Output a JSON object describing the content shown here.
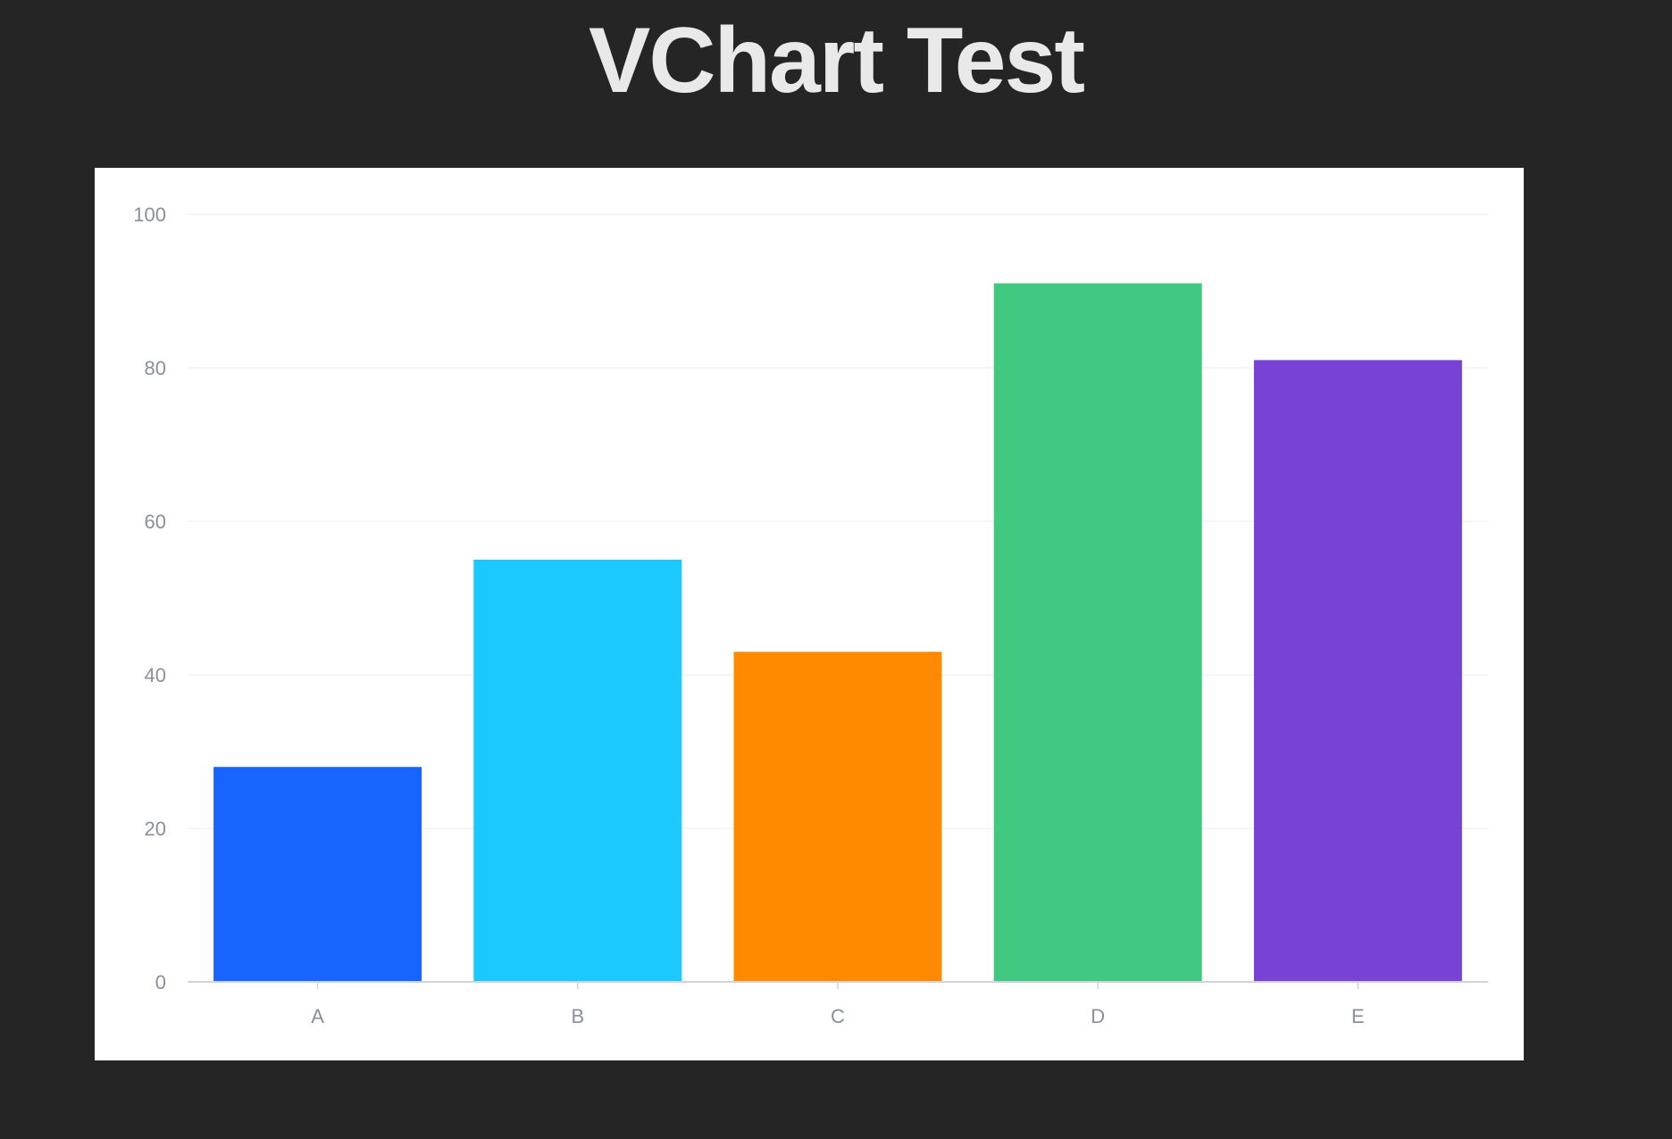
{
  "page": {
    "title": "VChart Test"
  },
  "chart_data": {
    "type": "bar",
    "title": "",
    "xlabel": "",
    "ylabel": "",
    "categories": [
      "A",
      "B",
      "C",
      "D",
      "E"
    ],
    "values": [
      28,
      55,
      43,
      91,
      81
    ],
    "colors": [
      "#1764ff",
      "#1bc8ff",
      "#ff8a00",
      "#41c981",
      "#7843d5"
    ],
    "ylim": [
      0,
      100
    ],
    "yticks": [
      0,
      20,
      40,
      60,
      80,
      100
    ],
    "grid": true,
    "legend": "none",
    "background": "#ffffff",
    "grid_color": "#ececf0",
    "axis_color": "#d0d3d9",
    "label_color": "#8a8f99"
  }
}
